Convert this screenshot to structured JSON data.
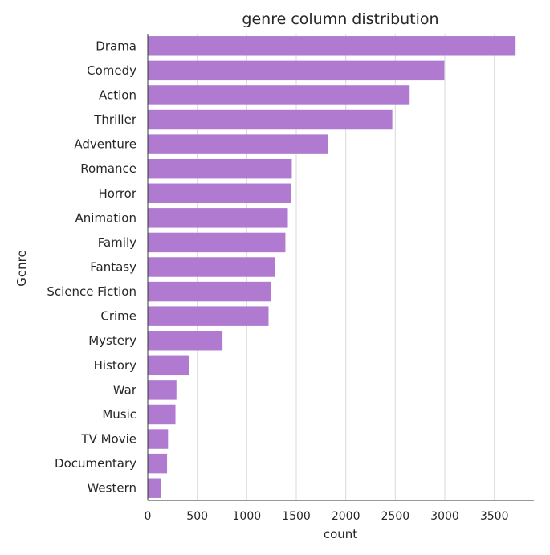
{
  "chart_data": {
    "type": "bar",
    "orientation": "horizontal",
    "title": "genre column distribution",
    "xlabel": "count",
    "ylabel": "Genre",
    "categories": [
      "Drama",
      "Comedy",
      "Action",
      "Thriller",
      "Adventure",
      "Romance",
      "Horror",
      "Animation",
      "Family",
      "Fantasy",
      "Science Fiction",
      "Crime",
      "Mystery",
      "History",
      "War",
      "Music",
      "TV Movie",
      "Documentary",
      "Western"
    ],
    "values": [
      3715,
      2995,
      2645,
      2470,
      1820,
      1455,
      1445,
      1415,
      1390,
      1285,
      1245,
      1220,
      755,
      420,
      290,
      280,
      205,
      195,
      130
    ],
    "xlim": [
      0,
      3900
    ],
    "xticks": [
      0,
      500,
      1000,
      1500,
      2000,
      2500,
      3000,
      3500
    ],
    "grid": "vertical",
    "bar_color": "#b07ad1",
    "grid_color": "#d9d9d9",
    "axis_color": "#333333"
  }
}
